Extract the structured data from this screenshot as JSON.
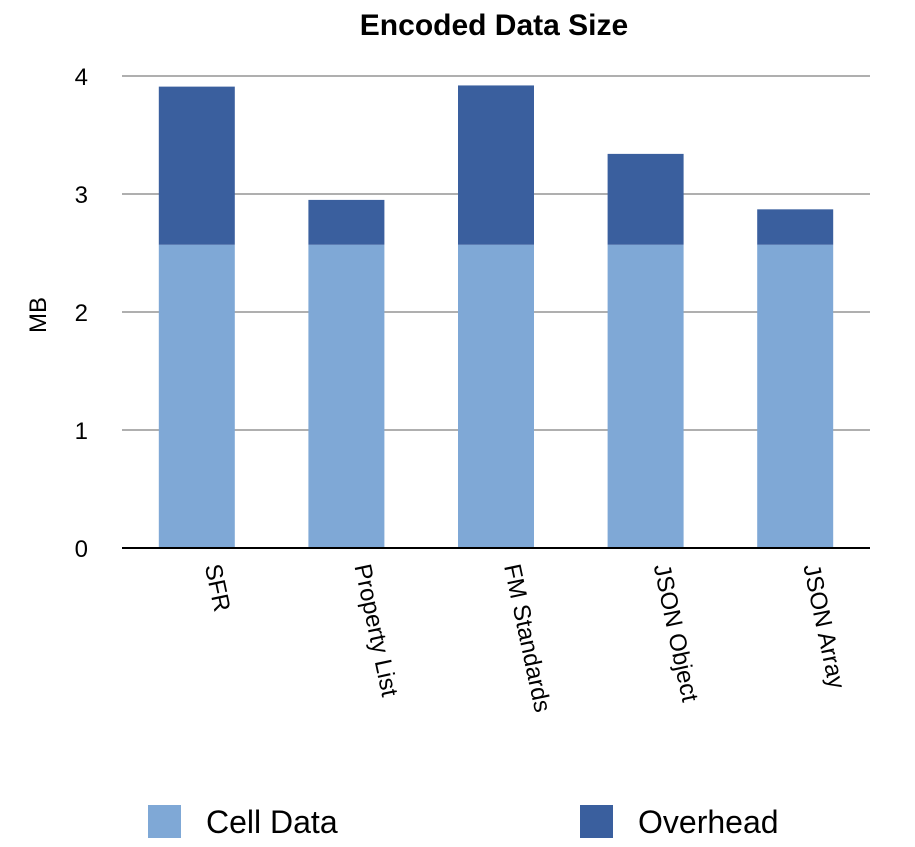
{
  "chart_data": {
    "type": "bar",
    "stacked": true,
    "title": "Encoded Data Size",
    "xlabel": "",
    "ylabel": "MB",
    "ylim": [
      0,
      4
    ],
    "yticks": [
      "0",
      "1",
      "2",
      "3",
      "4"
    ],
    "grid": true,
    "legend_position": "bottom",
    "categories": [
      "SFR",
      "Property List",
      "FM Standards",
      "JSON Object",
      "JSON Array"
    ],
    "series": [
      {
        "name": "Cell Data",
        "color": "#7FA8D6",
        "values": [
          2.57,
          2.57,
          2.57,
          2.57,
          2.57
        ]
      },
      {
        "name": "Overhead",
        "color": "#3A5F9E",
        "values": [
          1.34,
          0.38,
          1.35,
          0.77,
          0.3
        ]
      }
    ]
  }
}
